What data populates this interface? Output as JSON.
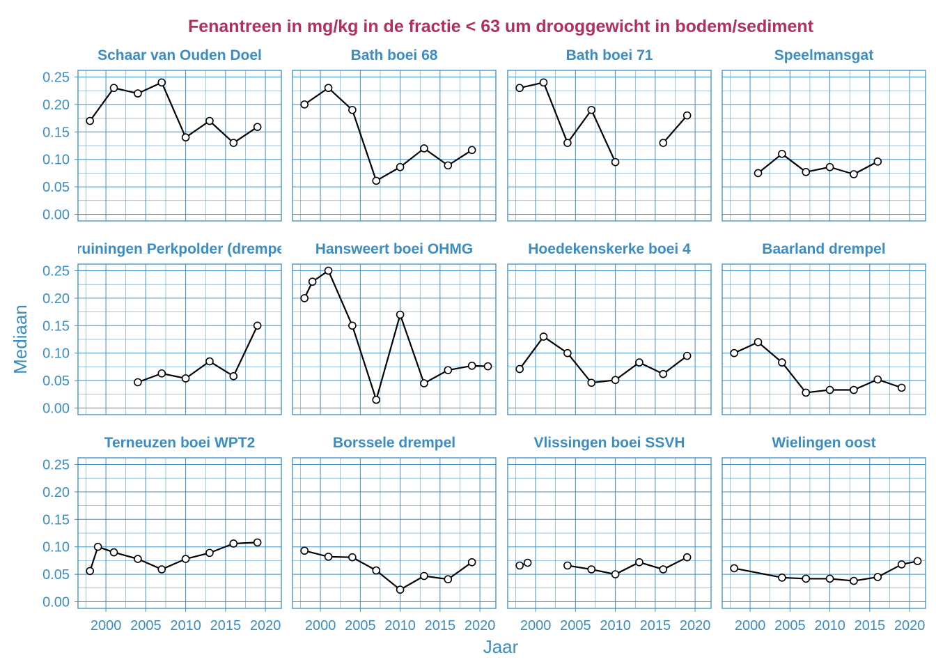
{
  "title": "Fenantreen in mg/kg in de fractie < 63 um drooggewicht in bodem/sediment",
  "xlabel": "Jaar",
  "ylabel": "Mediaan",
  "colors": {
    "title": "#b03060",
    "axis": "#3a8dc4",
    "grid": "#3a8dc4",
    "line": "#000000",
    "marker_fill": "#ffffff"
  },
  "chart_data": {
    "type": "line",
    "facets": [
      {
        "name": "Schaar van Ouden Doel",
        "x": [
          1998,
          2001,
          2004,
          2007,
          2010,
          2013,
          2016,
          2019
        ],
        "y": [
          0.17,
          0.23,
          0.22,
          0.24,
          0.14,
          0.17,
          0.13,
          0.159
        ]
      },
      {
        "name": "Bath boei 68",
        "x": [
          1998,
          2001,
          2004,
          2007,
          2010,
          2013,
          2016,
          2019
        ],
        "y": [
          0.2,
          0.23,
          0.19,
          0.061,
          0.086,
          0.12,
          0.089,
          0.117
        ]
      },
      {
        "name": "Bath boei 71",
        "x": [
          1998,
          2001,
          2004,
          2007,
          2010,
          2013,
          2016,
          2019
        ],
        "y": [
          0.23,
          0.24,
          0.13,
          0.19,
          0.095,
          null,
          0.13,
          0.18
        ]
      },
      {
        "name": "Speelmansgat",
        "x": [
          2001,
          2004,
          2007,
          2010,
          2013,
          2016
        ],
        "y": [
          0.075,
          0.11,
          0.077,
          0.086,
          0.073,
          0.096
        ]
      },
      {
        "name": "Kruiningen Perkpolder (drempel)",
        "x": [
          2004,
          2007,
          2010,
          2013,
          2016,
          2019
        ],
        "y": [
          0.047,
          0.063,
          0.054,
          0.085,
          0.058,
          0.15
        ]
      },
      {
        "name": "Hansweert boei OHMG",
        "x": [
          1998,
          1999,
          2001,
          2004,
          2007,
          2010,
          2013,
          2016,
          2019,
          2021
        ],
        "y": [
          0.2,
          0.23,
          0.25,
          0.15,
          0.015,
          0.17,
          0.045,
          0.069,
          0.077,
          0.076
        ]
      },
      {
        "name": "Hoedekenskerke boei 4",
        "x": [
          1998,
          2001,
          2004,
          2007,
          2010,
          2013,
          2016,
          2019
        ],
        "y": [
          0.071,
          0.13,
          0.1,
          0.046,
          0.051,
          0.083,
          0.062,
          0.095
        ]
      },
      {
        "name": "Baarland drempel",
        "x": [
          1998,
          2001,
          2004,
          2007,
          2010,
          2013,
          2016,
          2019
        ],
        "y": [
          0.1,
          0.12,
          0.083,
          0.028,
          0.033,
          0.033,
          0.052,
          0.037
        ]
      },
      {
        "name": "Terneuzen boei WPT2",
        "x": [
          1998,
          1999,
          2001,
          2004,
          2007,
          2010,
          2013,
          2016,
          2019
        ],
        "y": [
          0.056,
          0.1,
          0.09,
          0.078,
          0.059,
          0.078,
          0.089,
          0.106,
          0.108
        ]
      },
      {
        "name": "Borssele drempel",
        "x": [
          1998,
          2001,
          2004,
          2007,
          2010,
          2013,
          2016,
          2019
        ],
        "y": [
          0.093,
          0.082,
          0.081,
          0.057,
          0.022,
          0.047,
          0.041,
          0.072
        ]
      },
      {
        "name": "Vlissingen boei SSVH",
        "x": [
          1998,
          1999,
          null,
          2004,
          2007,
          2010,
          2013,
          2016,
          2019
        ],
        "y": [
          0.066,
          0.071,
          null,
          0.066,
          0.059,
          0.05,
          0.072,
          0.059,
          0.081
        ]
      },
      {
        "name": "Wielingen oost",
        "x": [
          1998,
          2004,
          2007,
          2010,
          2013,
          2016,
          2019,
          2021
        ],
        "y": [
          0.061,
          0.044,
          0.042,
          0.042,
          0.038,
          0.045,
          0.068,
          0.074
        ]
      }
    ],
    "xlim": [
      1996.5,
      2022
    ],
    "ylim": [
      -0.012,
      0.262
    ],
    "xticks": [
      2000,
      2005,
      2010,
      2015,
      2020
    ],
    "yticks": [
      0.0,
      0.05,
      0.1,
      0.15,
      0.2,
      0.25
    ],
    "ytick_labels": [
      "0.00",
      "0.05",
      "0.10",
      "0.15",
      "0.20",
      "0.25"
    ],
    "xtick_labels": [
      "2000",
      "2005",
      "2010",
      "2015",
      "2020"
    ],
    "grid": true
  }
}
